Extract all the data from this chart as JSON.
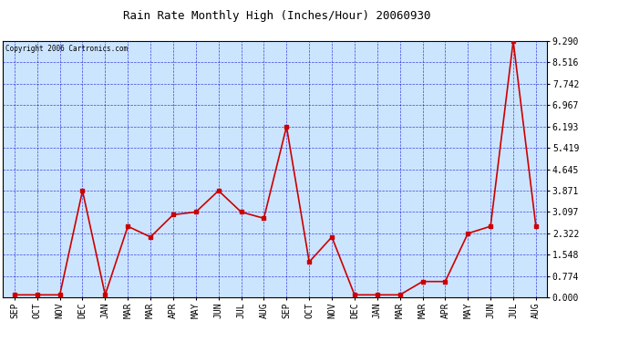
{
  "title": "Rain Rate Monthly High (Inches/Hour) 20060930",
  "copyright": "Copyright 2006 Cartronics.com",
  "x_labels": [
    "SEP",
    "OCT",
    "NOV",
    "DEC",
    "JAN",
    "MAR",
    "MAR",
    "APR",
    "MAY",
    "JUN",
    "JUL",
    "AUG",
    "SEP",
    "OCT",
    "NOV",
    "DEC",
    "JAN",
    "MAR",
    "MAR",
    "APR",
    "MAY",
    "JUN",
    "JUL",
    "AUG"
  ],
  "y_values": [
    0.097,
    0.097,
    0.097,
    3.871,
    0.097,
    2.58,
    2.193,
    3.0,
    3.097,
    3.871,
    3.097,
    2.871,
    6.193,
    1.29,
    2.193,
    0.097,
    0.097,
    0.097,
    0.58,
    0.58,
    2.322,
    2.58,
    9.29,
    2.58
  ],
  "y_ticks": [
    0.0,
    0.774,
    1.548,
    2.322,
    3.097,
    3.871,
    4.645,
    5.419,
    6.193,
    6.967,
    7.742,
    8.516,
    9.29
  ],
  "line_color": "#cc0000",
  "marker_color": "#cc0000",
  "bg_color": "#cce5ff",
  "grid_color": "#0000cc",
  "border_color": "#000000",
  "title_color": "#000000",
  "copyright_color": "#000000",
  "y_label_color": "#000000",
  "x_label_color": "#000000",
  "fig_width": 6.9,
  "fig_height": 3.75,
  "dpi": 100
}
